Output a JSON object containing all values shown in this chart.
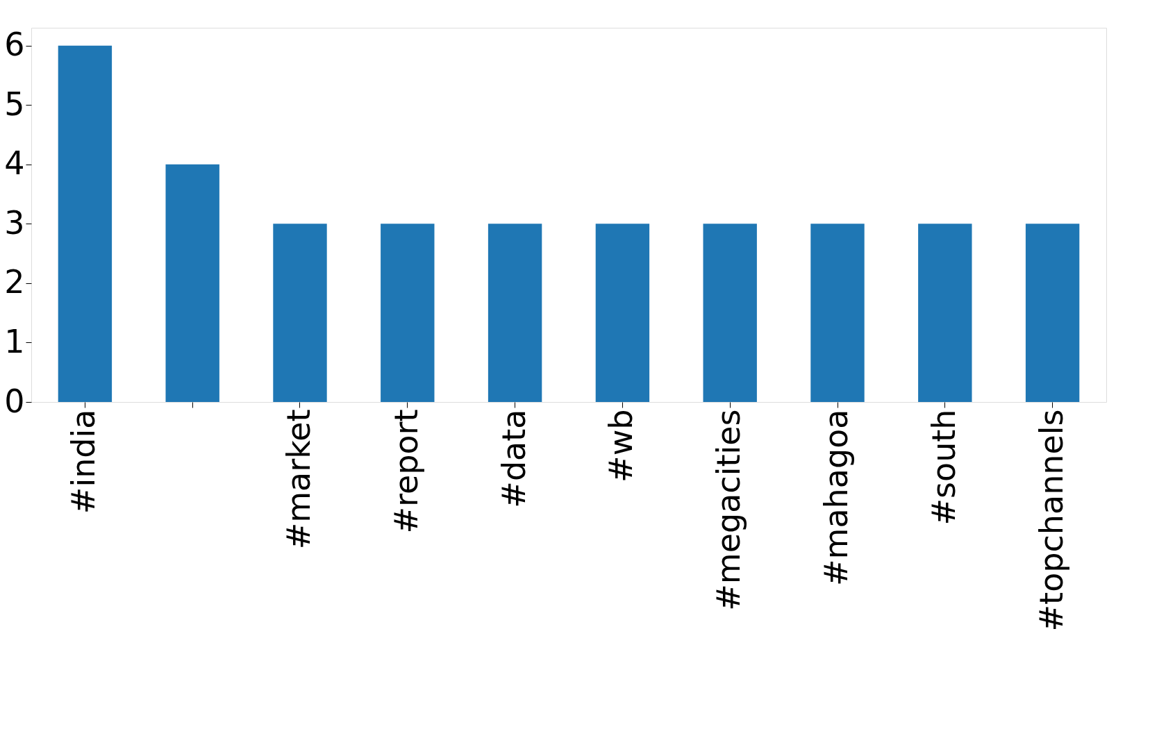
{
  "chart_data": {
    "type": "bar",
    "categories": [
      "#india",
      null,
      "#market",
      "#report",
      "#data",
      "#wb",
      "#megacities",
      "#mahagoa",
      "#south",
      "#topchannels"
    ],
    "values": [
      6,
      4,
      3,
      3,
      3,
      3,
      3,
      3,
      3,
      3
    ],
    "color": "#1f77b4",
    "ylim": [
      0,
      6.3
    ],
    "yticks": [
      0,
      1,
      2,
      3,
      4,
      5,
      6
    ],
    "grid": false
  }
}
